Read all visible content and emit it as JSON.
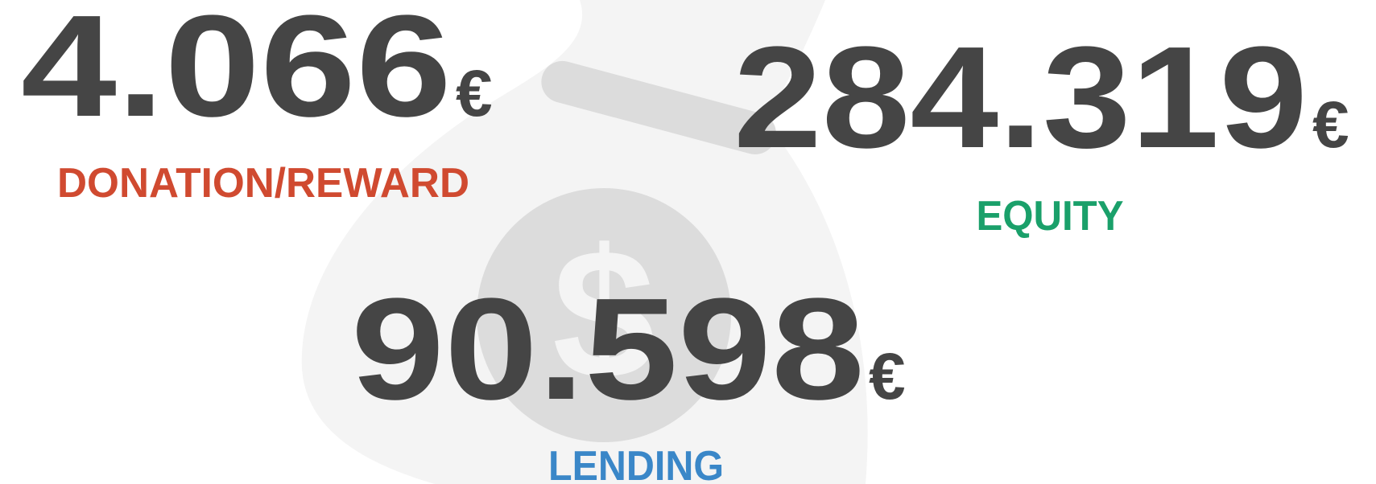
{
  "items": [
    {
      "value": "4.066",
      "unit": "€",
      "label": "DONATION/REWARD"
    },
    {
      "value": "284.319",
      "unit": "€",
      "label": "EQUITY"
    },
    {
      "value": "90.598",
      "unit": "€",
      "label": "LENDING"
    }
  ]
}
